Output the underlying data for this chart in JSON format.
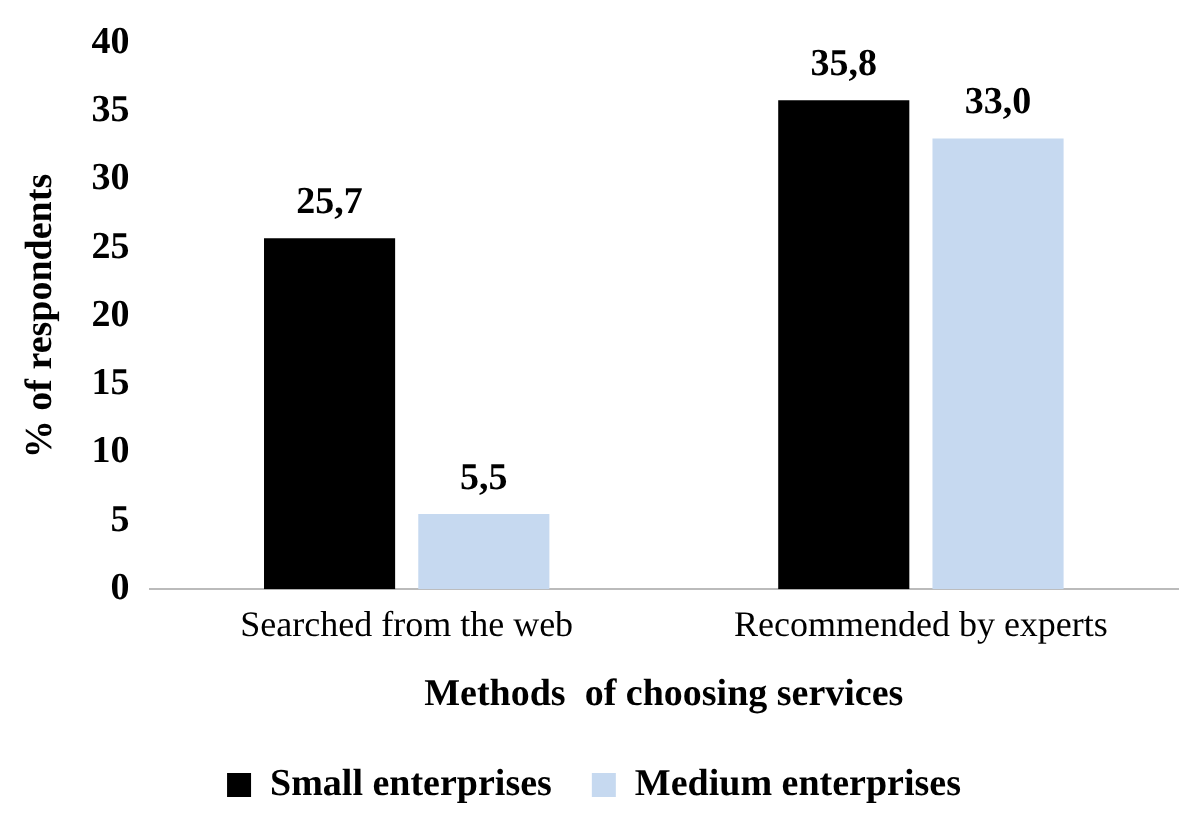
{
  "chart_data": {
    "type": "bar",
    "xlabel": "Methods  of choosing services",
    "ylabel": "% of respondents",
    "categories": [
      "Searched from the web",
      "Recommended by experts"
    ],
    "series": [
      {
        "name": "Small enterprises",
        "color": "#000000",
        "values": [
          25.7,
          35.8
        ],
        "value_labels": [
          "25,7",
          "35,8"
        ]
      },
      {
        "name": "Medium enterprises",
        "color": "#c6d9f0",
        "values": [
          5.5,
          33.0
        ],
        "value_labels": [
          "5,5",
          "33,0"
        ]
      }
    ],
    "ylim": [
      0,
      40
    ],
    "yticks": [
      0,
      5,
      10,
      15,
      20,
      25,
      30,
      35,
      40
    ],
    "grid": false,
    "legend": "bottom"
  }
}
